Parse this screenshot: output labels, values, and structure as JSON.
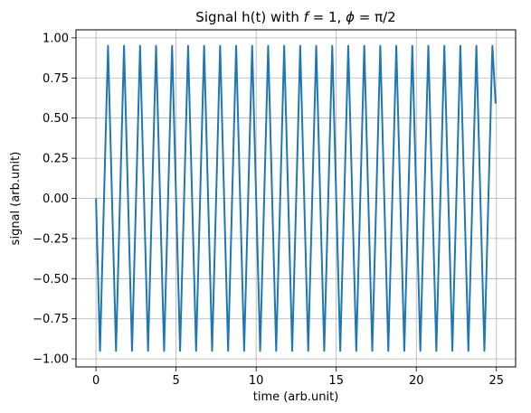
{
  "chart_data": {
    "type": "line",
    "title": "Signal h(t) with f = 1, ϕ = π/2",
    "title_parts": {
      "prefix": "Signal h(t) with ",
      "f_symbol": "f",
      "f_eq": " = 1, ",
      "phi_symbol": "ϕ",
      "phi_eq": " = π/2"
    },
    "xlabel": "time (arb.unit)",
    "ylabel": "signal (arb.unit)",
    "xlim": [
      -1.25,
      26.2
    ],
    "ylim": [
      -1.05,
      1.05
    ],
    "x_ticks": [
      0,
      5,
      10,
      15,
      20,
      25
    ],
    "x_tick_labels": [
      "0",
      "5",
      "10",
      "15",
      "20",
      "25"
    ],
    "y_ticks": [
      -1.0,
      -0.75,
      -0.5,
      -0.25,
      0.0,
      0.25,
      0.5,
      0.75,
      1.0
    ],
    "y_tick_labels": [
      "−1.00",
      "−0.75",
      "−0.50",
      "−0.25",
      "0.00",
      "0.25",
      "0.50",
      "0.75",
      "1.00"
    ],
    "grid": true,
    "series": [
      {
        "color": "#1f77b4",
        "x": [
          0,
          0.25,
          0.75,
          1.25,
          1.75,
          2.25,
          2.75,
          3.25,
          3.75,
          4.25,
          4.75,
          5.25,
          5.75,
          6.25,
          6.75,
          7.25,
          7.75,
          8.25,
          8.75,
          9.25,
          9.75,
          10.25,
          10.75,
          11.25,
          11.75,
          12.25,
          12.75,
          13.25,
          13.75,
          14.25,
          14.75,
          15.25,
          15.75,
          16.25,
          16.75,
          17.25,
          17.75,
          18.25,
          18.75,
          19.25,
          19.75,
          20.25,
          20.75,
          21.25,
          21.75,
          22.25,
          22.75,
          23.25,
          23.75,
          24.25,
          24.75,
          24.95
        ],
        "y": [
          0,
          -0.95,
          0.95,
          -0.95,
          0.95,
          -0.95,
          0.95,
          -0.95,
          0.95,
          -0.95,
          0.95,
          -0.95,
          0.95,
          -0.95,
          0.95,
          -0.95,
          0.95,
          -0.95,
          0.95,
          -0.95,
          0.95,
          -0.95,
          0.95,
          -0.95,
          0.95,
          -0.95,
          0.95,
          -0.95,
          0.95,
          -0.95,
          0.95,
          -0.95,
          0.95,
          -0.95,
          0.95,
          -0.95,
          0.95,
          -0.95,
          0.95,
          -0.95,
          0.95,
          -0.95,
          0.95,
          -0.95,
          0.95,
          -0.95,
          0.95,
          -0.95,
          0.95,
          -0.95,
          0.95,
          0.59
        ]
      }
    ]
  }
}
